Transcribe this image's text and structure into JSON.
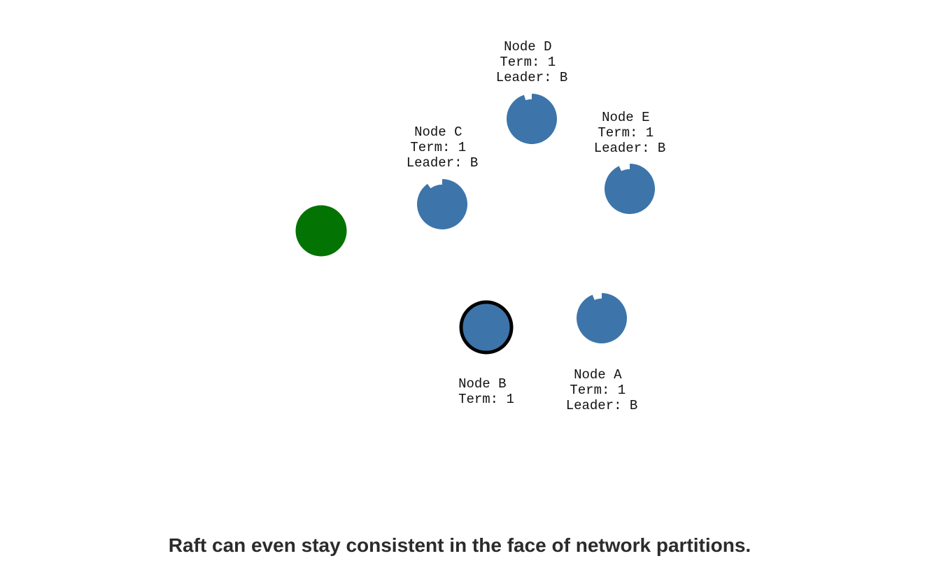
{
  "caption": "Raft can even stay consistent in the face of network partitions.",
  "colors": {
    "follower": "#3d75aa",
    "client": "#037303",
    "leader_ring": "#000000",
    "background": "#ffffff"
  },
  "client": {
    "icon": "client-circle-icon"
  },
  "nodes": [
    {
      "id": "D",
      "role": "follower",
      "timeout_remaining": 0.95,
      "lines": [
        "Node D",
        "Term: 1",
        "Leader: B"
      ]
    },
    {
      "id": "C",
      "role": "follower",
      "timeout_remaining": 0.9,
      "lines": [
        "Node C",
        "Term: 1",
        "Leader: B"
      ]
    },
    {
      "id": "E",
      "role": "follower",
      "timeout_remaining": 0.93,
      "lines": [
        "Node E",
        "Term: 1",
        "Leader: B"
      ]
    },
    {
      "id": "B",
      "role": "leader",
      "timeout_remaining": 1.0,
      "lines": [
        "Node B",
        "Term: 1"
      ]
    },
    {
      "id": "A",
      "role": "follower",
      "timeout_remaining": 0.94,
      "lines": [
        "Node A",
        "Term: 1",
        "Leader: B"
      ]
    }
  ]
}
